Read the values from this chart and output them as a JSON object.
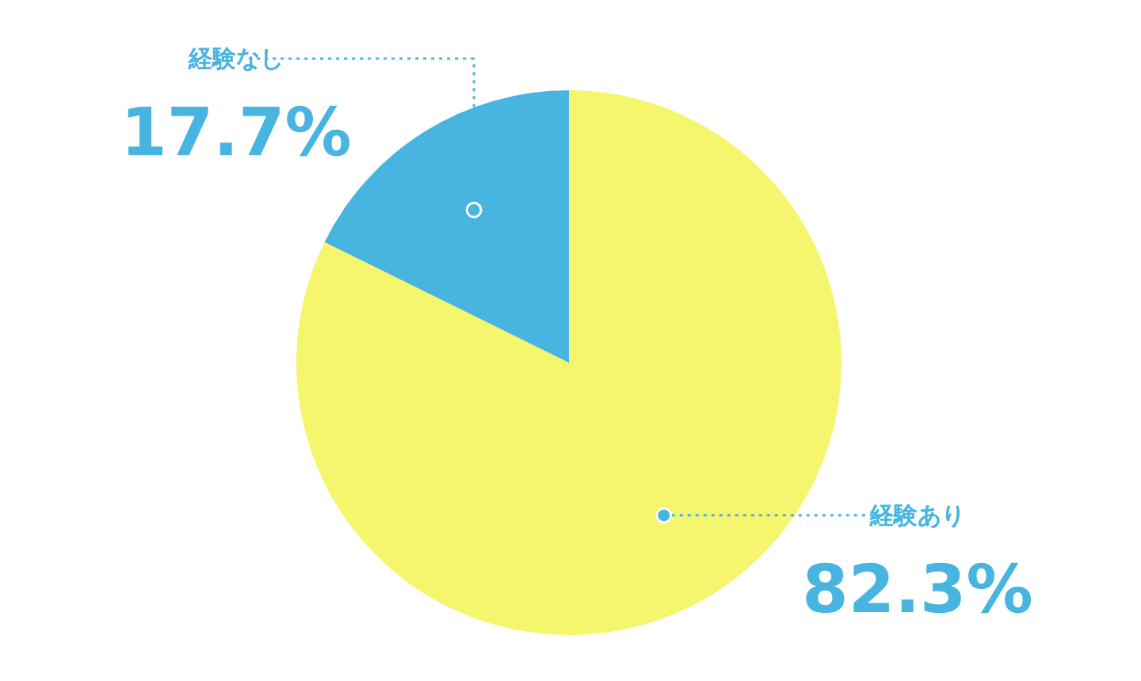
{
  "chart_data": {
    "type": "pie",
    "categories": [
      "経験あり",
      "経験なし"
    ],
    "values": [
      82.3,
      17.7
    ],
    "colors": [
      "#f5f56e",
      "#48b4e0"
    ],
    "value_labels": [
      "82.3%",
      "17.7%"
    ]
  }
}
